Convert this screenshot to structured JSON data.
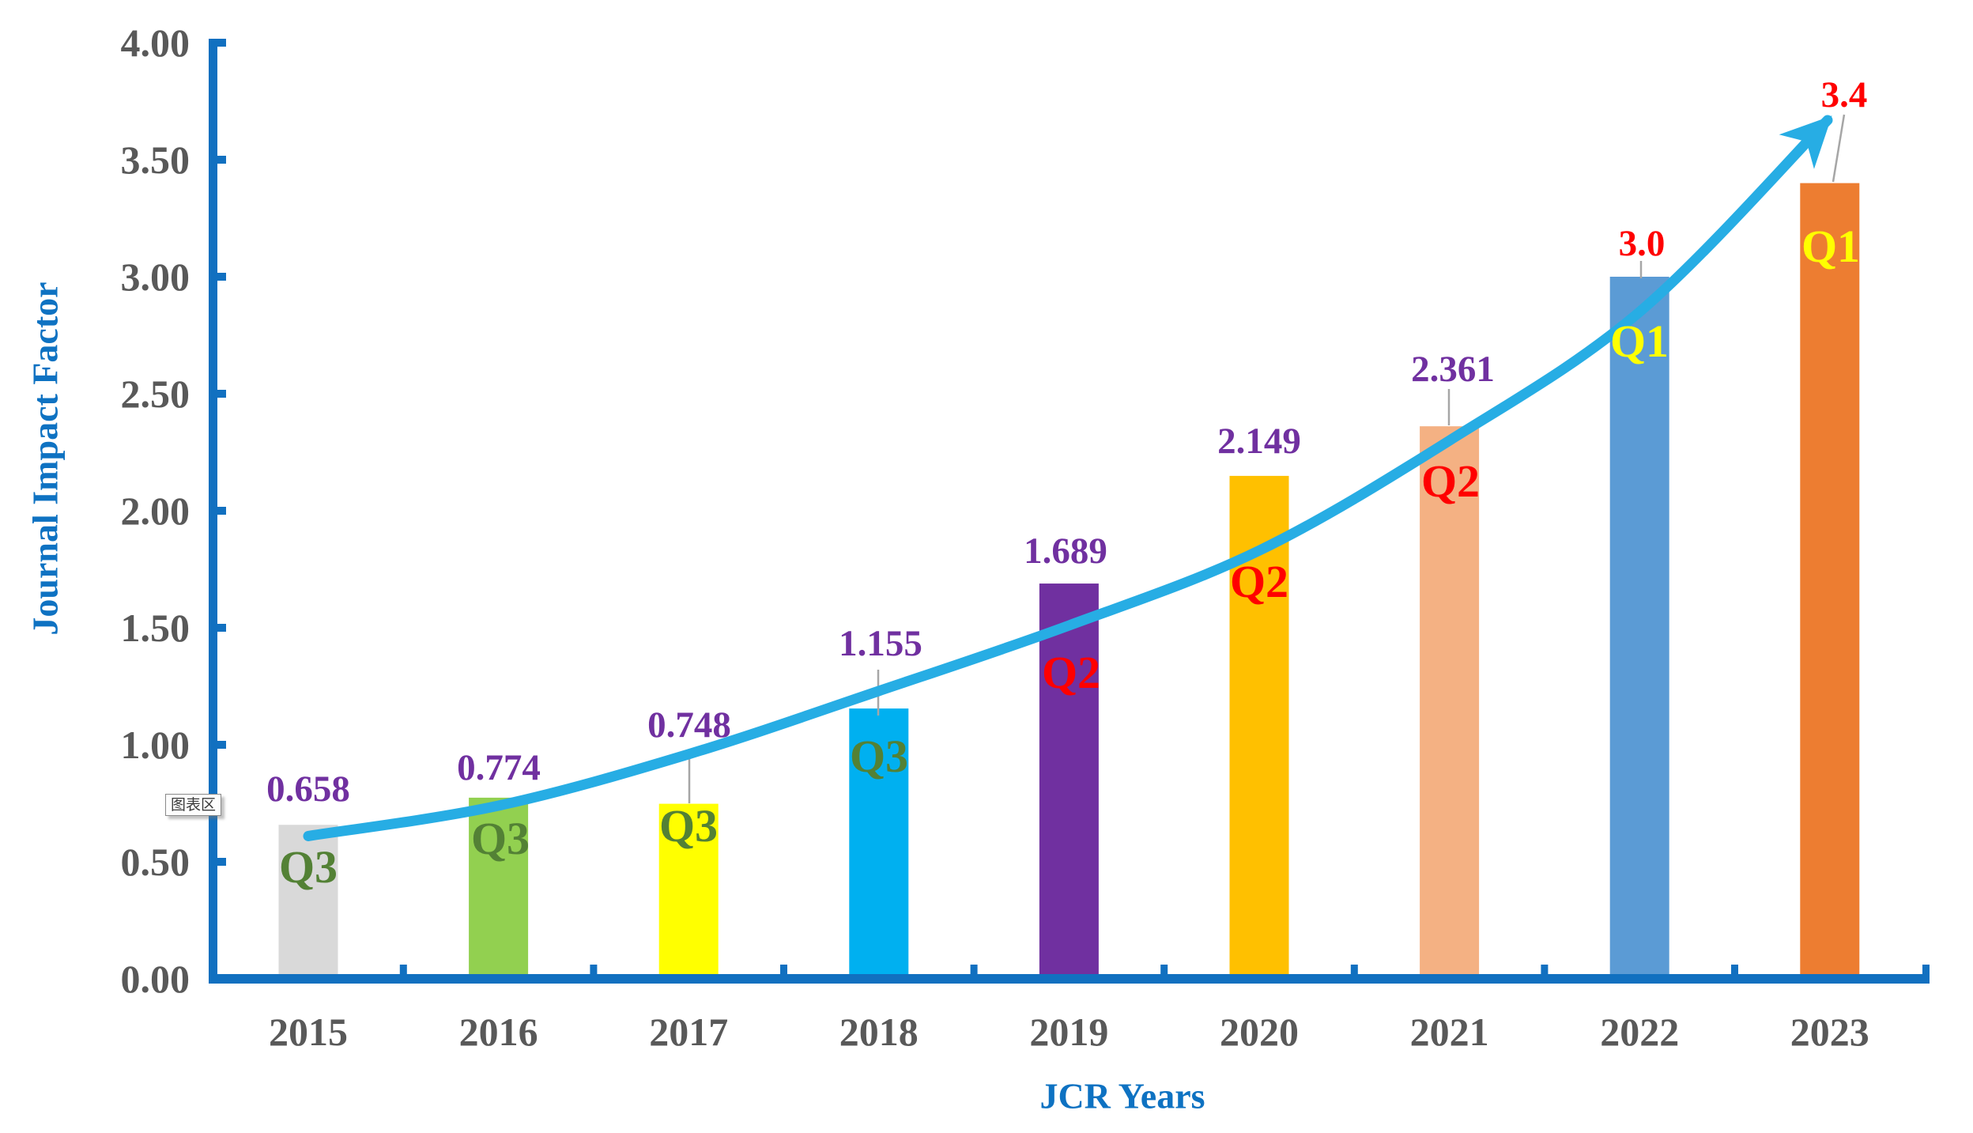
{
  "colors": {
    "axis_blue": "#1170c0",
    "title_blue": "#0e72c2",
    "tick_label_gray": "#595959",
    "value_purple": "#7030a0",
    "value_red": "#ff0000",
    "quartile_green": "#538135",
    "quartile_yellow": "#ffff00",
    "trend_blue": "#27ade4",
    "leader_gray": "#a6a6a6"
  },
  "tooltip": {
    "text": "图表区"
  },
  "chart_data": {
    "type": "bar",
    "title": "",
    "xlabel": "JCR Years",
    "ylabel": "Journal Impact Factor",
    "categories": [
      "2015",
      "2016",
      "2017",
      "2018",
      "2019",
      "2020",
      "2021",
      "2022",
      "2023"
    ],
    "series": [
      {
        "name": "Journal Impact Factor",
        "values": [
          0.658,
          0.774,
          0.748,
          1.155,
          1.689,
          2.149,
          2.361,
          3.0,
          3.4
        ]
      }
    ],
    "value_labels": [
      "0.658",
      "0.774",
      "0.748",
      "1.155",
      "1.689",
      "2.149",
      "2.361",
      "3.0",
      "3.4"
    ],
    "value_label_colors": [
      "#7030a0",
      "#7030a0",
      "#7030a0",
      "#7030a0",
      "#7030a0",
      "#7030a0",
      "#7030a0",
      "#ff0000",
      "#ff0000"
    ],
    "quartile_labels": [
      "Q3",
      "Q3",
      "Q3",
      "Q3",
      "Q2",
      "Q2",
      "Q2",
      "Q1",
      "Q1"
    ],
    "quartile_label_colors": [
      "#538135",
      "#538135",
      "#538135",
      "#538135",
      "#ff0000",
      "#ff0000",
      "#ff0000",
      "#ffff00",
      "#ffff00"
    ],
    "bar_colors": [
      "#d9d9d9",
      "#92d050",
      "#ffff00",
      "#00b0f0",
      "#7030a0",
      "#ffc000",
      "#f4b183",
      "#5b9bd5",
      "#ed7d31"
    ],
    "ylim": [
      0.0,
      4.0
    ],
    "ytick_step": 0.5,
    "ytick_labels": [
      "0.00",
      "0.50",
      "1.00",
      "1.50",
      "2.00",
      "2.50",
      "3.00",
      "3.50",
      "4.00"
    ],
    "grid": false,
    "legend": "none",
    "trend": {
      "type": "exponential-arrow",
      "color": "#27ade4",
      "values_at_categories": [
        0.61,
        0.74,
        0.96,
        1.23,
        1.51,
        1.83,
        2.3,
        2.85
      ],
      "arrow_end_value": 3.67
    }
  }
}
